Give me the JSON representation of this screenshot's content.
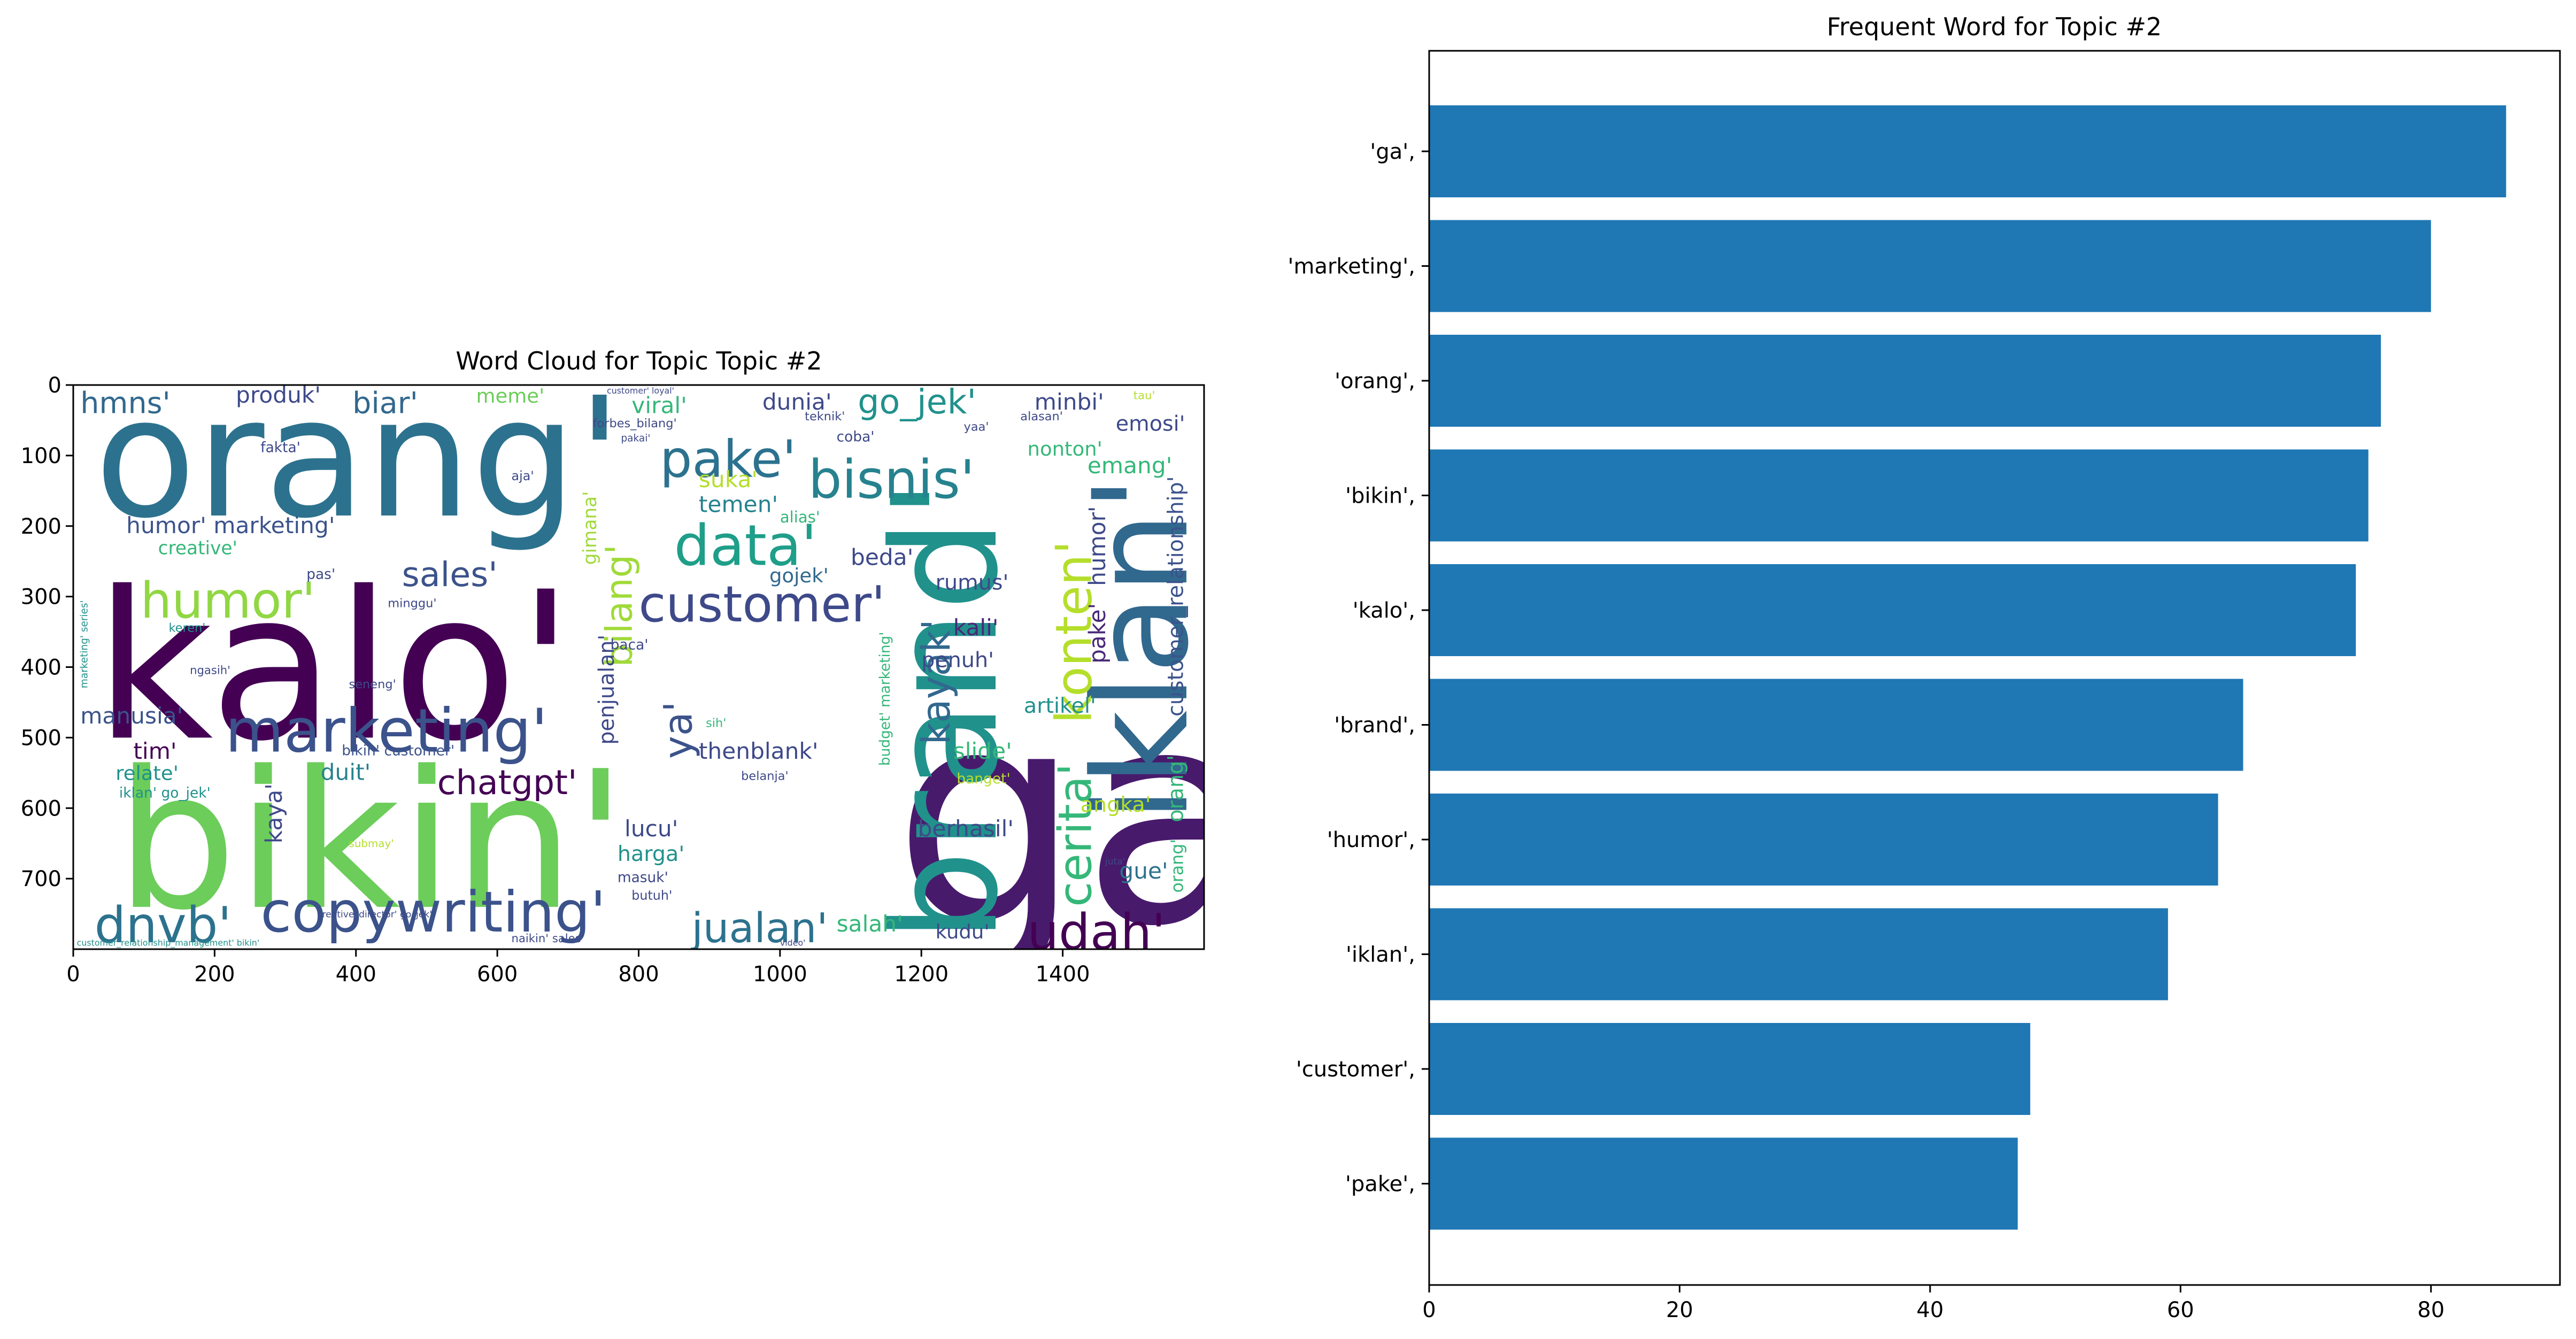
{
  "chart_data": [
    {
      "type": "wordcloud",
      "title": "Word Cloud for Topic Topic #2",
      "x_ticks": [
        0,
        200,
        400,
        600,
        800,
        1000,
        1200,
        1400
      ],
      "y_ticks": [
        0,
        100,
        200,
        300,
        400,
        500,
        600,
        700
      ],
      "xlim": [
        0,
        1600
      ],
      "ylim": [
        800,
        0
      ],
      "words": [
        {
          "text": "ga'",
          "x": 1160,
          "y": 760,
          "size": 420,
          "color": "#481a6c",
          "angle": 0
        },
        {
          "text": "kalo'",
          "x": 30,
          "y": 500,
          "size": 290,
          "color": "#440154",
          "angle": 0
        },
        {
          "text": "bikin'",
          "x": 60,
          "y": 740,
          "size": 270,
          "color": "#6ccd5a",
          "angle": 0
        },
        {
          "text": "orang'",
          "x": 30,
          "y": 185,
          "size": 235,
          "color": "#2c728e",
          "angle": 0
        },
        {
          "text": "brand'",
          "x": 1305,
          "y": 790,
          "size": 205,
          "color": "#21918c",
          "angle": -90
        },
        {
          "text": "iklan'",
          "x": 1575,
          "y": 620,
          "size": 185,
          "color": "#31688e",
          "angle": -90
        },
        {
          "text": "marketing'",
          "x": 215,
          "y": 520,
          "size": 85,
          "color": "#3b528b",
          "angle": 0
        },
        {
          "text": "copywriting'",
          "x": 265,
          "y": 775,
          "size": 80,
          "color": "#3b528b",
          "angle": 0
        },
        {
          "text": "data'",
          "x": 850,
          "y": 255,
          "size": 80,
          "color": "#1f9e89",
          "angle": 0
        },
        {
          "text": "bisnis'",
          "x": 1040,
          "y": 160,
          "size": 75,
          "color": "#26828e",
          "angle": 0
        },
        {
          "text": "pake'",
          "x": 830,
          "y": 130,
          "size": 72,
          "color": "#2c728e",
          "angle": 0
        },
        {
          "text": "customer'",
          "x": 800,
          "y": 335,
          "size": 70,
          "color": "#3e4989",
          "angle": 0
        },
        {
          "text": "konten'",
          "x": 1440,
          "y": 480,
          "size": 70,
          "color": "#b5de2b",
          "angle": -90
        },
        {
          "text": "cerita'",
          "x": 1440,
          "y": 740,
          "size": 65,
          "color": "#35b779",
          "angle": -90
        },
        {
          "text": "dnvb'",
          "x": 30,
          "y": 790,
          "size": 70,
          "color": "#2c728e",
          "angle": 0
        },
        {
          "text": "udah'",
          "x": 1350,
          "y": 800,
          "size": 70,
          "color": "#440154",
          "angle": 0
        },
        {
          "text": "humor'",
          "x": 95,
          "y": 330,
          "size": 70,
          "color": "#90d743",
          "angle": 0
        },
        {
          "text": "jualan'",
          "x": 875,
          "y": 790,
          "size": 58,
          "color": "#2c728e",
          "angle": 0
        },
        {
          "text": "chatgpt'",
          "x": 515,
          "y": 580,
          "size": 48,
          "color": "#440154",
          "angle": 0
        },
        {
          "text": "sales'",
          "x": 465,
          "y": 285,
          "size": 48,
          "color": "#3b528b",
          "angle": 0
        },
        {
          "text": "bilang'",
          "x": 790,
          "y": 400,
          "size": 52,
          "color": "#a0da39",
          "angle": -90
        },
        {
          "text": "ya'",
          "x": 875,
          "y": 530,
          "size": 55,
          "color": "#3b528b",
          "angle": -90
        },
        {
          "text": "kayak'",
          "x": 1240,
          "y": 510,
          "size": 55,
          "color": "#31688e",
          "angle": -90
        },
        {
          "text": "hmns'",
          "x": 10,
          "y": 40,
          "size": 42,
          "color": "#31688e",
          "angle": 0
        },
        {
          "text": "produk'",
          "x": 230,
          "y": 25,
          "size": 32,
          "color": "#3e4989",
          "angle": 0
        },
        {
          "text": "biar'",
          "x": 395,
          "y": 40,
          "size": 42,
          "color": "#31688e",
          "angle": 0
        },
        {
          "text": "go_jek'",
          "x": 1110,
          "y": 40,
          "size": 48,
          "color": "#21918c",
          "angle": 0
        },
        {
          "text": "humor' marketing'",
          "x": 75,
          "y": 210,
          "size": 32,
          "color": "#3b528b",
          "angle": 0
        },
        {
          "text": "creative'",
          "x": 120,
          "y": 240,
          "size": 26,
          "color": "#35b779",
          "angle": 0
        },
        {
          "text": "manusia'",
          "x": 10,
          "y": 480,
          "size": 32,
          "color": "#3b528b",
          "angle": 0
        },
        {
          "text": "tim'",
          "x": 85,
          "y": 530,
          "size": 32,
          "color": "#440154",
          "angle": 0
        },
        {
          "text": "relate'",
          "x": 60,
          "y": 560,
          "size": 28,
          "color": "#21918c",
          "angle": 0
        },
        {
          "text": "iklan' go_jek'",
          "x": 65,
          "y": 585,
          "size": 20,
          "color": "#21918c",
          "angle": 0
        },
        {
          "text": "duit'",
          "x": 350,
          "y": 560,
          "size": 32,
          "color": "#26828e",
          "angle": 0
        },
        {
          "text": "bikin' customer'",
          "x": 380,
          "y": 525,
          "size": 20,
          "color": "#3b528b",
          "angle": 0
        },
        {
          "text": "kaya'",
          "x": 295,
          "y": 650,
          "size": 32,
          "color": "#3e4989",
          "angle": -90
        },
        {
          "text": "meme'",
          "x": 570,
          "y": 25,
          "size": 28,
          "color": "#6ccd5a",
          "angle": 0
        },
        {
          "text": "viral'",
          "x": 790,
          "y": 40,
          "size": 32,
          "color": "#35b779",
          "angle": 0
        },
        {
          "text": "dunia'",
          "x": 975,
          "y": 35,
          "size": 32,
          "color": "#3e4989",
          "angle": 0
        },
        {
          "text": "minbi'",
          "x": 1360,
          "y": 35,
          "size": 32,
          "color": "#3e4989",
          "angle": 0
        },
        {
          "text": "emosi'",
          "x": 1475,
          "y": 65,
          "size": 30,
          "color": "#3e4989",
          "angle": 0
        },
        {
          "text": "nonton'",
          "x": 1350,
          "y": 100,
          "size": 28,
          "color": "#35b779",
          "angle": 0
        },
        {
          "text": "emang'",
          "x": 1435,
          "y": 125,
          "size": 32,
          "color": "#35b779",
          "angle": 0
        },
        {
          "text": "suka'",
          "x": 885,
          "y": 145,
          "size": 32,
          "color": "#b5de2b",
          "angle": 0
        },
        {
          "text": "temen'",
          "x": 885,
          "y": 180,
          "size": 32,
          "color": "#26828e",
          "angle": 0
        },
        {
          "text": "gimana'",
          "x": 740,
          "y": 255,
          "size": 26,
          "color": "#a0da39",
          "angle": -90
        },
        {
          "text": "alias'",
          "x": 1000,
          "y": 195,
          "size": 22,
          "color": "#35b779",
          "angle": 0
        },
        {
          "text": "beda'",
          "x": 1100,
          "y": 255,
          "size": 32,
          "color": "#3e4989",
          "angle": 0
        },
        {
          "text": "gojek'",
          "x": 985,
          "y": 280,
          "size": 28,
          "color": "#31688e",
          "angle": 0
        },
        {
          "text": "rumus'",
          "x": 1220,
          "y": 290,
          "size": 30,
          "color": "#3e4989",
          "angle": 0
        },
        {
          "text": "kali'",
          "x": 1245,
          "y": 355,
          "size": 32,
          "color": "#482878",
          "angle": 0
        },
        {
          "text": "humor'",
          "x": 1460,
          "y": 285,
          "size": 32,
          "color": "#3e4989",
          "angle": -90
        },
        {
          "text": "pake'",
          "x": 1460,
          "y": 395,
          "size": 32,
          "color": "#482878",
          "angle": -90
        },
        {
          "text": "penuh'",
          "x": 1200,
          "y": 400,
          "size": 30,
          "color": "#3e4989",
          "angle": 0
        },
        {
          "text": "artikel'",
          "x": 1345,
          "y": 465,
          "size": 30,
          "color": "#21918c",
          "angle": 0
        },
        {
          "text": "customer_relationship'",
          "x": 1570,
          "y": 470,
          "size": 30,
          "color": "#3b528b",
          "angle": -90
        },
        {
          "text": "orang'",
          "x": 1570,
          "y": 620,
          "size": 30,
          "color": "#35b779",
          "angle": -90
        },
        {
          "text": "orang'",
          "x": 1570,
          "y": 720,
          "size": 24,
          "color": "#35b779",
          "angle": -90
        },
        {
          "text": "penjualan'",
          "x": 765,
          "y": 510,
          "size": 30,
          "color": "#3e4989",
          "angle": -90
        },
        {
          "text": "thenblank'",
          "x": 885,
          "y": 530,
          "size": 32,
          "color": "#3e4989",
          "angle": 0
        },
        {
          "text": "slide'",
          "x": 1245,
          "y": 530,
          "size": 32,
          "color": "#35b779",
          "angle": 0
        },
        {
          "text": "berhasil'",
          "x": 1195,
          "y": 640,
          "size": 32,
          "color": "#3e4989",
          "angle": 0
        },
        {
          "text": "angka'",
          "x": 1425,
          "y": 605,
          "size": 30,
          "color": "#b5de2b",
          "angle": 0
        },
        {
          "text": "gue'",
          "x": 1480,
          "y": 700,
          "size": 32,
          "color": "#2c728e",
          "angle": 0
        },
        {
          "text": "lucu'",
          "x": 780,
          "y": 640,
          "size": 32,
          "color": "#3e4989",
          "angle": 0
        },
        {
          "text": "harga'",
          "x": 770,
          "y": 675,
          "size": 30,
          "color": "#21918c",
          "angle": 0
        },
        {
          "text": "salah'",
          "x": 1080,
          "y": 775,
          "size": 32,
          "color": "#35b779",
          "angle": 0
        },
        {
          "text": "kudu'",
          "x": 1220,
          "y": 785,
          "size": 28,
          "color": "#3e4989",
          "angle": 0
        },
        {
          "text": "banget'",
          "x": 1250,
          "y": 565,
          "size": 20,
          "color": "#b5de2b",
          "angle": 0
        },
        {
          "text": "budget' marketing'",
          "x": 1155,
          "y": 540,
          "size": 20,
          "color": "#35b779",
          "angle": -90
        },
        {
          "text": "baca'",
          "x": 760,
          "y": 375,
          "size": 20,
          "color": "#3e4989",
          "angle": 0
        },
        {
          "text": "pas'",
          "x": 330,
          "y": 275,
          "size": 20,
          "color": "#3e4989",
          "angle": 0
        },
        {
          "text": "fakta'",
          "x": 265,
          "y": 95,
          "size": 20,
          "color": "#3e4989",
          "angle": 0
        },
        {
          "text": "keren'",
          "x": 135,
          "y": 350,
          "size": 17,
          "color": "#21918c",
          "angle": 0
        },
        {
          "text": "minggu'",
          "x": 445,
          "y": 315,
          "size": 17,
          "color": "#3e4989",
          "angle": 0
        },
        {
          "text": "seneng'",
          "x": 390,
          "y": 430,
          "size": 17,
          "color": "#3e4989",
          "angle": 0
        },
        {
          "text": "aja'",
          "x": 620,
          "y": 135,
          "size": 18,
          "color": "#3e4989",
          "angle": 0
        },
        {
          "text": "coba'",
          "x": 1080,
          "y": 80,
          "size": 20,
          "color": "#3e4989",
          "angle": 0
        },
        {
          "text": "yaa'",
          "x": 1260,
          "y": 65,
          "size": 17,
          "color": "#3e4989",
          "angle": 0
        },
        {
          "text": "alasan'",
          "x": 1340,
          "y": 50,
          "size": 17,
          "color": "#3e4989",
          "angle": 0
        },
        {
          "text": "teknik'",
          "x": 1035,
          "y": 50,
          "size": 17,
          "color": "#3e4989",
          "angle": 0
        },
        {
          "text": "pakai'",
          "x": 775,
          "y": 80,
          "size": 14,
          "color": "#3e4989",
          "angle": 0
        },
        {
          "text": "forbes_bilang'",
          "x": 735,
          "y": 60,
          "size": 17,
          "color": "#3e4989",
          "angle": 0
        },
        {
          "text": "ngasih'",
          "x": 165,
          "y": 410,
          "size": 16,
          "color": "#3e4989",
          "angle": 0
        },
        {
          "text": "masuk'",
          "x": 770,
          "y": 705,
          "size": 20,
          "color": "#3e4989",
          "angle": 0
        },
        {
          "text": "butuh'",
          "x": 790,
          "y": 730,
          "size": 18,
          "color": "#3e4989",
          "angle": 0
        },
        {
          "text": "naikin' sales'",
          "x": 620,
          "y": 790,
          "size": 16,
          "color": "#3e4989",
          "angle": 0
        },
        {
          "text": "belanja'",
          "x": 945,
          "y": 560,
          "size": 17,
          "color": "#3e4989",
          "angle": 0
        },
        {
          "text": "sih'",
          "x": 895,
          "y": 485,
          "size": 17,
          "color": "#35b779",
          "angle": 0
        },
        {
          "text": "marketing' series'",
          "x": 20,
          "y": 430,
          "size": 14,
          "color": "#21918c",
          "angle": -90
        },
        {
          "text": "customer_relationship_management' bikin'",
          "x": 5,
          "y": 795,
          "size": 12,
          "color": "#21918c",
          "angle": 0
        },
        {
          "text": "creative_director' go_jek'",
          "x": 345,
          "y": 755,
          "size": 13,
          "color": "#3e4989",
          "angle": 0
        },
        {
          "text": "submay'",
          "x": 390,
          "y": 655,
          "size": 15,
          "color": "#b5de2b",
          "angle": 0
        },
        {
          "text": "tau'",
          "x": 1500,
          "y": 20,
          "size": 16,
          "color": "#b5de2b",
          "angle": 0
        },
        {
          "text": "customer' loyal'",
          "x": 755,
          "y": 12,
          "size": 12,
          "color": "#3e4989",
          "angle": 0
        },
        {
          "text": "video'",
          "x": 1000,
          "y": 795,
          "size": 12,
          "color": "#3e4989",
          "angle": 0
        },
        {
          "text": "juta'",
          "x": 1460,
          "y": 680,
          "size": 13,
          "color": "#3e4989",
          "angle": 0
        }
      ]
    },
    {
      "type": "bar",
      "orientation": "horizontal",
      "title": "Frequent Word for Topic #2",
      "categories": [
        "'ga',",
        "'marketing',",
        "'orang',",
        "'bikin',",
        "'kalo',",
        "'brand',",
        "'humor',",
        "'iklan',",
        "'customer',",
        "'pake',"
      ],
      "values": [
        86,
        80,
        76,
        75,
        74,
        65,
        63,
        59,
        48,
        47
      ],
      "xlim": [
        0,
        90.3
      ],
      "x_ticks": [
        0,
        20,
        40,
        60,
        80
      ],
      "color": "#1f77b4"
    }
  ]
}
